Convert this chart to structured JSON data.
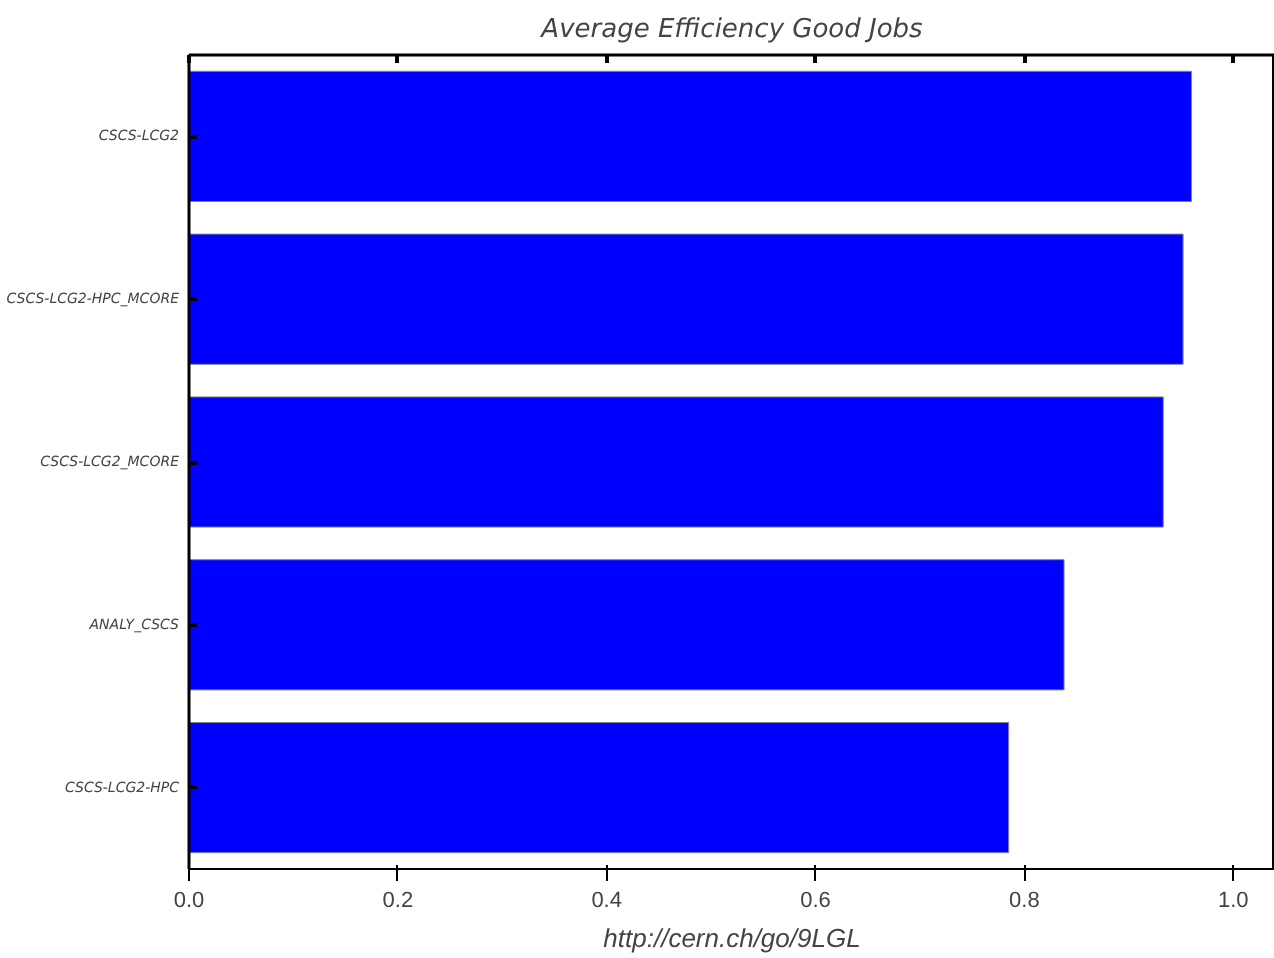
{
  "chart_data": {
    "type": "bar",
    "orientation": "horizontal",
    "title": "Average Efficiency Good Jobs",
    "xlabel": "http://cern.ch/go/9LGL",
    "categories": [
      "CSCS-LCG2",
      "CSCS-LCG2-HPC_MCORE",
      "CSCS-LCG2_MCORE",
      "ANALY_CSCS",
      "CSCS-LCG2-HPC"
    ],
    "values": [
      0.96,
      0.952,
      0.933,
      0.838,
      0.785
    ],
    "color": "#0000ff",
    "xlim": [
      0,
      1.04
    ],
    "xticks": [
      {
        "value": 0,
        "label": "0.0"
      },
      0.2,
      0.4,
      0.6,
      0.8,
      {
        "value": 1,
        "label": "1.0"
      }
    ],
    "grid": false
  }
}
